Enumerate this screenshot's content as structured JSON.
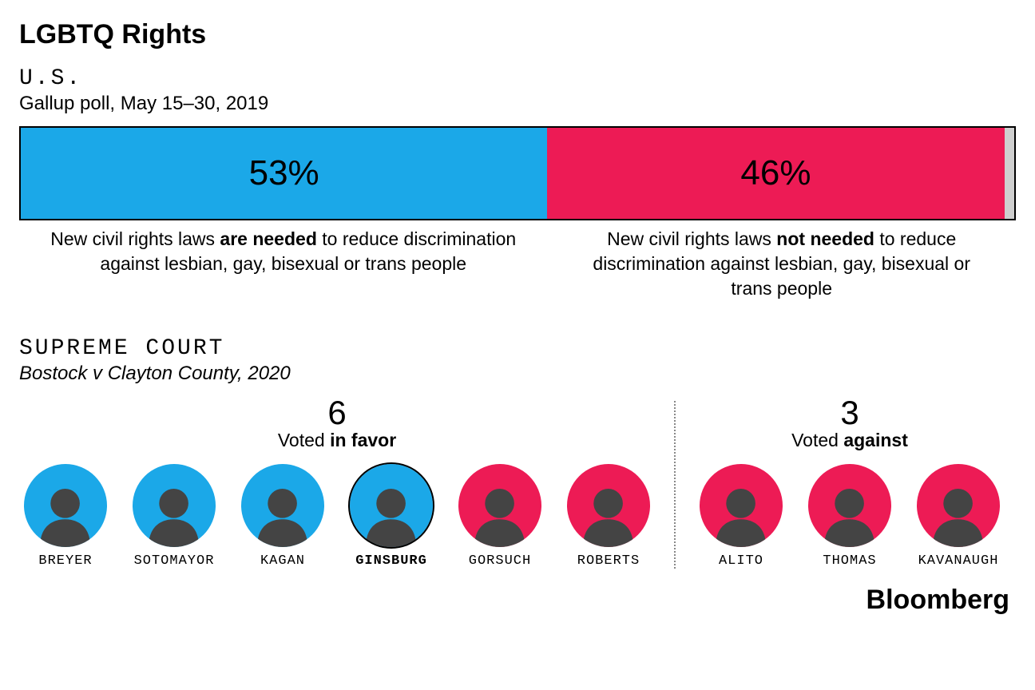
{
  "title": "LGBTQ Rights",
  "us_section": {
    "label": "U.S.",
    "subtitle": "Gallup poll, May 15–30, 2019",
    "bar": {
      "segments": [
        {
          "value": 53,
          "label": "53%",
          "color": "#1ba8e8",
          "width_pct": 53
        },
        {
          "value": 46,
          "label": "46%",
          "color": "#ed1b55",
          "width_pct": 46
        },
        {
          "value": 1,
          "label": "",
          "color": "#cfcfcf",
          "width_pct": 1
        }
      ]
    },
    "captions": [
      {
        "pre": "New civil rights laws ",
        "bold": "are needed",
        "post": " to reduce discrimination against lesbian, gay, bisexual or trans people",
        "width_pct": 53
      },
      {
        "pre": "New civil rights laws ",
        "bold": "not needed",
        "post": " to reduce discrimination against lesbian, gay, bisexual or trans people",
        "width_pct": 47
      }
    ]
  },
  "sc_section": {
    "label": "SUPREME COURT",
    "subtitle": "Bostock v Clayton County, 2020",
    "favor": {
      "count": "6",
      "label_pre": "Voted ",
      "label_bold": "in favor",
      "justices": [
        {
          "name": "BREYER",
          "color": "#1ba8e8",
          "bold": false,
          "outlined": false
        },
        {
          "name": "SOTOMAYOR",
          "color": "#1ba8e8",
          "bold": false,
          "outlined": false
        },
        {
          "name": "KAGAN",
          "color": "#1ba8e8",
          "bold": false,
          "outlined": false
        },
        {
          "name": "GINSBURG",
          "color": "#1ba8e8",
          "bold": true,
          "outlined": true
        },
        {
          "name": "GORSUCH",
          "color": "#ed1b55",
          "bold": false,
          "outlined": false
        },
        {
          "name": "ROBERTS",
          "color": "#ed1b55",
          "bold": false,
          "outlined": false
        }
      ]
    },
    "against": {
      "count": "3",
      "label_pre": "Voted ",
      "label_bold": "against",
      "justices": [
        {
          "name": "ALITO",
          "color": "#ed1b55",
          "bold": false,
          "outlined": false
        },
        {
          "name": "THOMAS",
          "color": "#ed1b55",
          "bold": false,
          "outlined": false
        },
        {
          "name": "KAVANAUGH",
          "color": "#ed1b55",
          "bold": false,
          "outlined": false
        }
      ]
    }
  },
  "source": "Bloomberg",
  "styling": {
    "bg": "#ffffff",
    "text": "#000000",
    "bar_border": "#000000",
    "divider": "#888888",
    "silhouette_fill": "#444444"
  }
}
